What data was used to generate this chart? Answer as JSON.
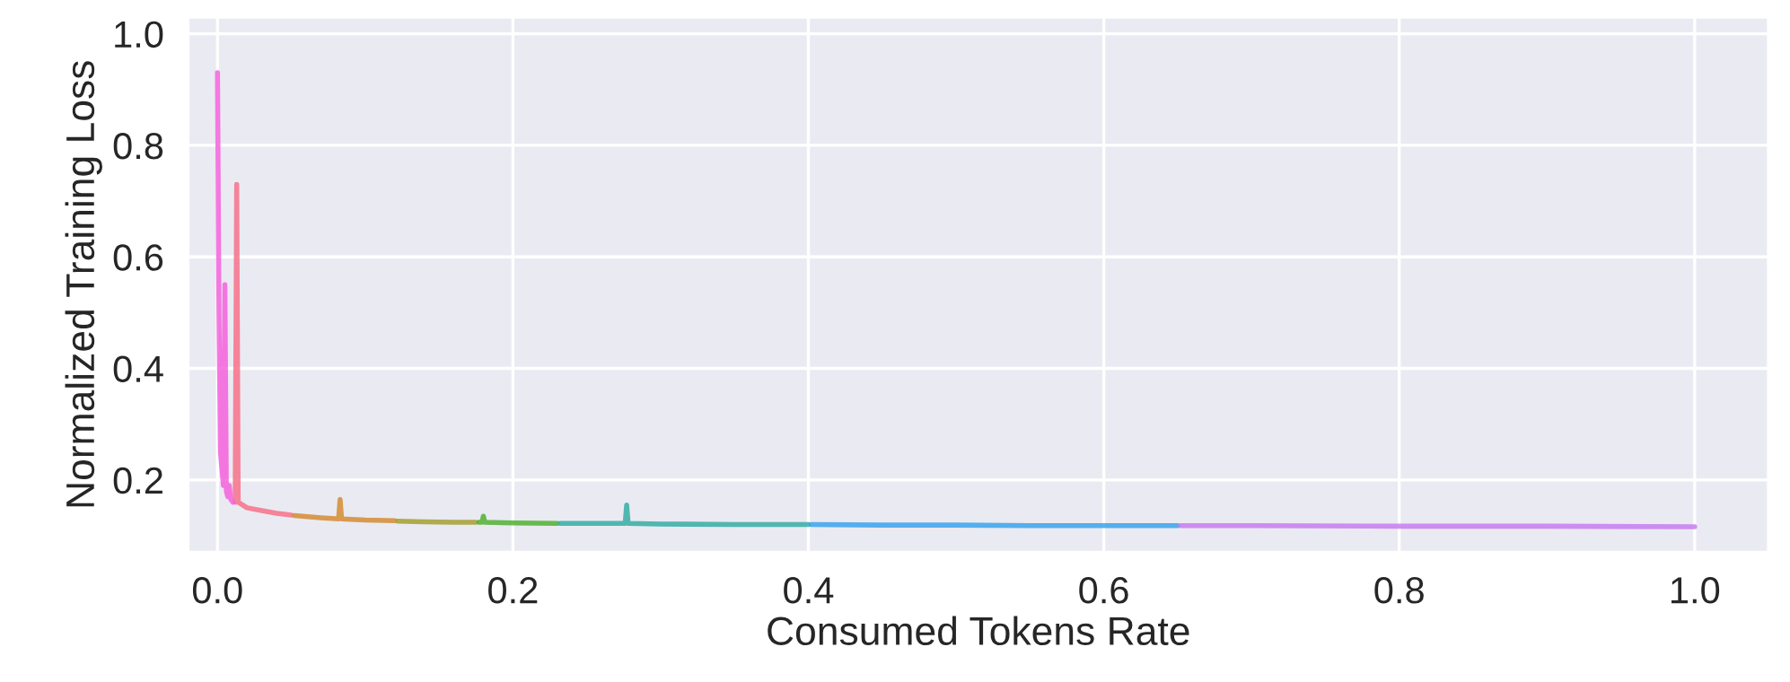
{
  "chart_data": {
    "type": "line",
    "xlabel": "Consumed Tokens Rate",
    "ylabel": "Normalized Training Loss",
    "xlim": [
      -0.02,
      1.05
    ],
    "xticks": [
      {
        "value": 0,
        "label": "0.0"
      },
      0.2,
      0.4,
      0.6,
      0.8,
      {
        "value": 1,
        "label": "1.0"
      }
    ],
    "ylim": [
      0.07,
      1.03
    ],
    "yticks": [
      0.2,
      0.4,
      0.6,
      0.8,
      {
        "value": 1,
        "label": "1.0"
      }
    ],
    "grid": true,
    "marker": "none",
    "line_style": "solid",
    "series": [
      {
        "color": "#f77189",
        "x": [
          0.012,
          0.013,
          0.014,
          0.02,
          0.03,
          0.04,
          0.05
        ],
        "values": [
          0.16,
          0.73,
          0.16,
          0.15,
          0.145,
          0.14,
          0.137
        ]
      },
      {
        "color": "#d58c32",
        "x": [
          0.052,
          0.07,
          0.082,
          0.083,
          0.084,
          0.1,
          0.12
        ],
        "values": [
          0.136,
          0.132,
          0.13,
          0.165,
          0.13,
          0.128,
          0.127
        ]
      },
      {
        "color": "#a4a031",
        "x": [
          0.122,
          0.14,
          0.16,
          0.175
        ],
        "values": [
          0.126,
          0.125,
          0.124,
          0.124
        ]
      },
      {
        "color": "#50b131",
        "x": [
          0.177,
          0.179,
          0.18,
          0.181,
          0.2,
          0.23
        ],
        "values": [
          0.124,
          0.124,
          0.135,
          0.124,
          0.123,
          0.122
        ]
      },
      {
        "color": "#36ada4",
        "x": [
          0.232,
          0.276,
          0.277,
          0.278,
          0.3,
          0.35,
          0.4
        ],
        "values": [
          0.122,
          0.122,
          0.155,
          0.122,
          0.121,
          0.12,
          0.12
        ]
      },
      {
        "color": "#3ba3ec",
        "x": [
          0.402,
          0.45,
          0.5,
          0.55,
          0.6,
          0.65
        ],
        "values": [
          0.12,
          0.119,
          0.119,
          0.118,
          0.118,
          0.118
        ]
      },
      {
        "color": "#c77cf0",
        "x": [
          0.652,
          0.7,
          0.8,
          0.9,
          1.0
        ],
        "values": [
          0.118,
          0.118,
          0.117,
          0.117,
          0.116
        ]
      },
      {
        "color": "#f561dd",
        "x": [
          0,
          0.001,
          0.002,
          0.004,
          0.005,
          0.006,
          0.007,
          0.008,
          0.009,
          0.0105
        ],
        "values": [
          0.93,
          0.5,
          0.25,
          0.19,
          0.55,
          0.18,
          0.17,
          0.19,
          0.165,
          0.16
        ]
      }
    ]
  }
}
